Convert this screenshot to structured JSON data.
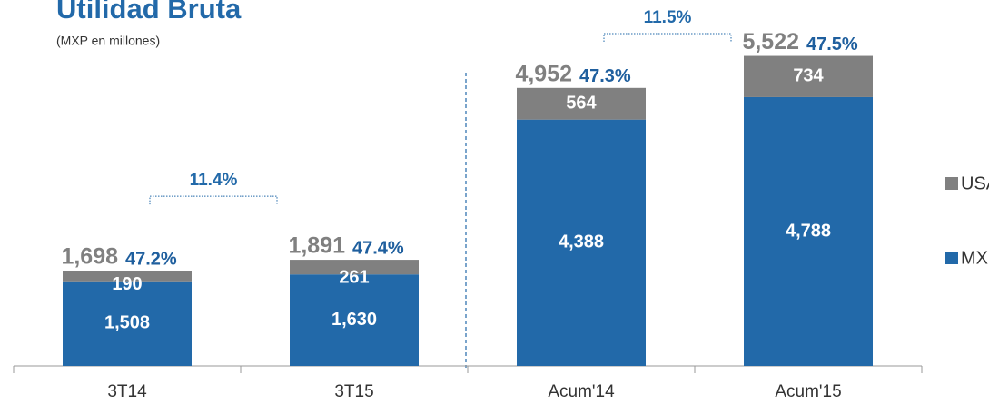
{
  "chart_data": {
    "type": "stacked_bar",
    "title": "Utilidad Bruta",
    "subtitle": "(MXP en millones)",
    "categories": [
      "3T14",
      "3T15",
      "Acum'14",
      "Acum'15"
    ],
    "series": [
      {
        "name": "MX",
        "color": "#2269a9",
        "values": [
          1508,
          1630,
          4388,
          4788
        ],
        "value_labels": [
          "1,508",
          "1,630",
          "4,388",
          "4,788"
        ]
      },
      {
        "name": "USA",
        "color": "#808080",
        "values": [
          190,
          261,
          564,
          734
        ]
      }
    ],
    "totals": {
      "values": [
        1698,
        1891,
        4952,
        5522
      ],
      "value_labels": [
        "1,698",
        "1,891",
        "4,952",
        "5,522"
      ]
    },
    "margins": {
      "values": [
        47.2,
        47.4,
        47.3,
        47.5
      ],
      "value_labels": [
        "47.2%",
        "47.4%",
        "47.3%",
        "47.5%"
      ]
    },
    "annotations": [
      {
        "text": "11.4%"
      },
      {
        "text": "11.5%"
      }
    ],
    "ylim": [
      0,
      6000
    ],
    "legend": "right"
  }
}
